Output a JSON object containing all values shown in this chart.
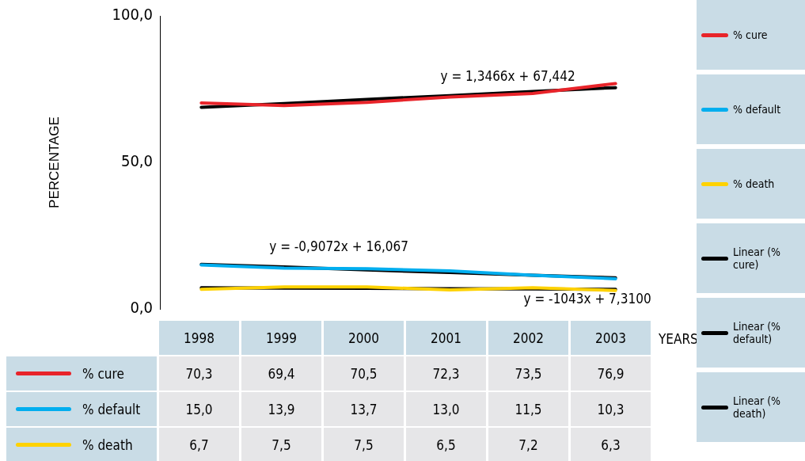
{
  "chart_data": {
    "type": "line",
    "ylabel": "PERCENTAGE",
    "xlabel": "YEARS",
    "categories": [
      "1998",
      "1999",
      "2000",
      "2001",
      "2002",
      "2003"
    ],
    "ylim": [
      0,
      100
    ],
    "yticks": [
      {
        "value": 0,
        "label": "0,0"
      },
      {
        "value": 50,
        "label": "50,0"
      },
      {
        "value": 100,
        "label": "100,0"
      }
    ],
    "grid": false,
    "legend": "right",
    "marker": "none",
    "line_style": "solid",
    "series": [
      {
        "name": "% cure",
        "color": "#e8242a",
        "values": [
          70.3,
          69.4,
          70.5,
          72.3,
          73.5,
          76.9
        ],
        "value_labels": [
          "70,3",
          "69,4",
          "70,5",
          "72,3",
          "73,5",
          "76,9"
        ]
      },
      {
        "name": "% default",
        "color": "#00aeef",
        "values": [
          15.0,
          13.9,
          13.7,
          13.0,
          11.5,
          10.3
        ],
        "value_labels": [
          "15,0",
          "13,9",
          "13,7",
          "13,0",
          "11,5",
          "10,3"
        ]
      },
      {
        "name": "% death",
        "color": "#ffd200",
        "values": [
          6.7,
          7.5,
          7.5,
          6.5,
          7.2,
          6.3
        ],
        "value_labels": [
          "6,7",
          "7,5",
          "7,5",
          "6,5",
          "7,2",
          "6,3"
        ]
      },
      {
        "name": "Linear (% cure)",
        "color": "#000000",
        "values": [
          68.8,
          70.1,
          71.5,
          72.8,
          74.2,
          75.5
        ]
      },
      {
        "name": "Linear (% default)",
        "color": "#000000",
        "values": [
          15.2,
          14.3,
          13.3,
          12.4,
          11.5,
          10.6
        ]
      },
      {
        "name": "Linear (% death)",
        "color": "#000000",
        "values": [
          7.2,
          7.1,
          7.0,
          6.9,
          6.8,
          6.7
        ]
      }
    ],
    "annotations": [
      "y = 1,3466x + 67,442",
      "y = -0,9072x + 16,067",
      "y = -1043x + 7,3100"
    ]
  }
}
